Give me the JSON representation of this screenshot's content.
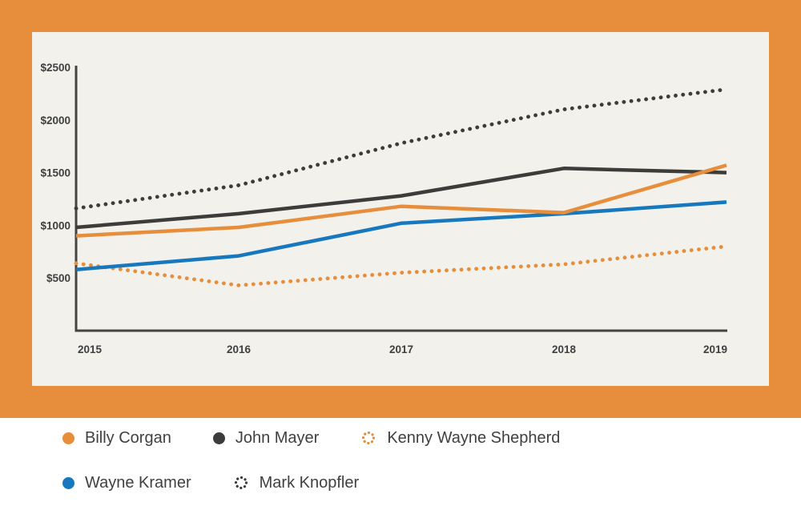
{
  "colors": {
    "frame_bg": "#E78E3C",
    "panel_bg": "#F2F1EB",
    "page_bg": "#FFFFFF",
    "axis": "#474440",
    "tick_text": "#3F4040",
    "legend_text": "#404042",
    "orange": "#E78E3C",
    "dark": "#3D3C3A",
    "blue": "#1778BE"
  },
  "chart_data": {
    "type": "line",
    "title": "",
    "xlabel": "",
    "ylabel": "",
    "categories": [
      "2015",
      "2016",
      "2017",
      "2018",
      "2019"
    ],
    "series": [
      {
        "name": "Billy Corgan",
        "color": "#E78E3C",
        "style": "solid",
        "values": [
          900,
          980,
          1180,
          1120,
          1570
        ]
      },
      {
        "name": "John Mayer",
        "color": "#3D3C3A",
        "style": "solid",
        "values": [
          980,
          1110,
          1280,
          1540,
          1500
        ]
      },
      {
        "name": "Kenny Wayne Shepherd",
        "color": "#E78E3C",
        "style": "dotted",
        "values": [
          640,
          430,
          550,
          630,
          800
        ]
      },
      {
        "name": "Wayne Kramer",
        "color": "#1778BE",
        "style": "solid",
        "values": [
          580,
          710,
          1020,
          1110,
          1220
        ]
      },
      {
        "name": "Mark Knopfler",
        "color": "#3D3C3A",
        "style": "dotted",
        "values": [
          1160,
          1380,
          1780,
          2100,
          2290
        ]
      }
    ],
    "y_ticks": [
      "$500",
      "$1000",
      "$1500",
      "$2000",
      "$2500"
    ],
    "y_tick_values": [
      500,
      1000,
      1500,
      2000,
      2500
    ],
    "ylim": [
      0,
      2500
    ],
    "grid": false,
    "legend_position": "bottom"
  },
  "legend": {
    "rows": [
      [
        "Billy Corgan",
        "John Mayer",
        "Kenny Wayne Shepherd"
      ],
      [
        "Wayne Kramer",
        "Mark Knopfler"
      ]
    ]
  }
}
